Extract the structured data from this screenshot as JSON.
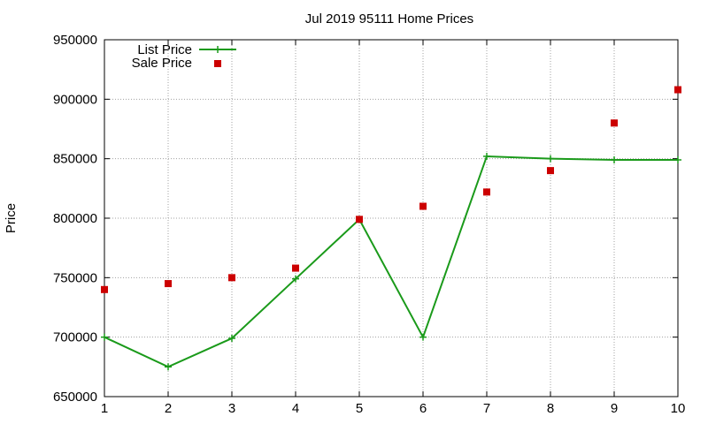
{
  "chart_data": {
    "type": "line",
    "title": "Jul 2019 95111 Home Prices",
    "xlabel": "",
    "ylabel": "Price",
    "x": [
      1,
      2,
      3,
      4,
      5,
      6,
      7,
      8,
      9,
      10
    ],
    "xlim": [
      1,
      10
    ],
    "ylim": [
      650000,
      950000
    ],
    "xticks": [
      "1",
      "2",
      "3",
      "4",
      "5",
      "6",
      "7",
      "8",
      "9",
      "10"
    ],
    "yticks": [
      650000,
      700000,
      750000,
      800000,
      850000,
      900000,
      950000
    ],
    "ytick_labels": [
      "650000",
      "700000",
      "750000",
      "800000",
      "850000",
      "900000",
      "950000"
    ],
    "grid": true,
    "legend_position": "top-left",
    "series": [
      {
        "name": "List Price",
        "style": "line-with-plus-markers",
        "color": "#1a9a1a",
        "values": [
          700000,
          675000,
          699000,
          749000,
          799000,
          700000,
          852000,
          850000,
          849000,
          849000
        ]
      },
      {
        "name": "Sale Price",
        "style": "square-markers",
        "color": "#cc0000",
        "values": [
          740000,
          745000,
          750000,
          758000,
          799000,
          810000,
          822000,
          840000,
          880000,
          908000
        ]
      }
    ]
  }
}
